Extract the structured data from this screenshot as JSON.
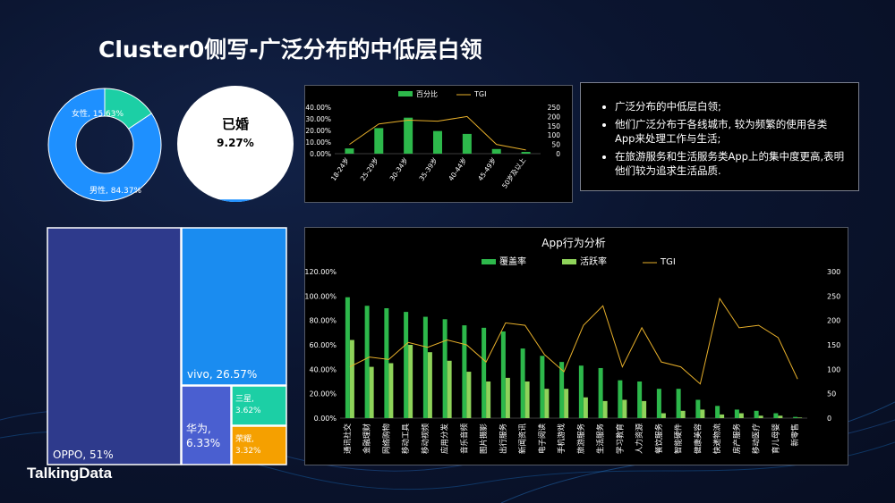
{
  "title": "Cluster0侧写-广泛分布的中低层白领",
  "brand": "TalkingData",
  "notes": [
    "广泛分布的中低层白领;",
    "他们广泛分布于各线城市, 较为频繁的使用各类App来处理工作与生活;",
    "在旅游服务和生活服务类App上的集中度更高,表明他们较为追求生活品质."
  ],
  "colors": {
    "green": "#2db84b",
    "light_green": "#8fd35a",
    "tgi": "#e8b02a",
    "blue": "#1e90ff",
    "teal": "#1ccfa5",
    "navy": "#2e3a8c"
  },
  "chart_data": [
    {
      "type": "pie",
      "chart": "gender-donut",
      "labels": [
        "女性, 15.63%",
        "男性, 84.37%"
      ],
      "values": [
        15.63,
        84.37
      ]
    },
    {
      "type": "pie",
      "chart": "marital-pie",
      "label": "已婚",
      "value_label": "9.27%",
      "values": [
        9.27,
        90.73
      ]
    },
    {
      "type": "bar",
      "chart": "age-chart",
      "legend": [
        "百分比",
        "TGI"
      ],
      "categories": [
        "18-24岁",
        "25-29岁",
        "30-34岁",
        "35-39岁",
        "40-44岁",
        "45-49岁",
        "50岁及以上"
      ],
      "series": [
        {
          "name": "百分比",
          "values": [
            4.5,
            22,
            31,
            19.5,
            17,
            4,
            1.5
          ]
        },
        {
          "name": "TGI",
          "values": [
            50,
            160,
            180,
            175,
            200,
            50,
            20
          ]
        }
      ],
      "yticks_left": [
        "0.00%",
        "10.00%",
        "20.00%",
        "30.00%",
        "40.00%"
      ],
      "yticks_right": [
        "0",
        "50",
        "100",
        "150",
        "200",
        "250"
      ],
      "ylim": [
        0,
        40
      ],
      "ylim_right": [
        0,
        250
      ]
    },
    {
      "type": "table",
      "chart": "brand-treemap",
      "labels": [
        "OPPO, 51%",
        "vivo, 26.57%",
        "华为, 6.33%",
        "三星, 3.62%",
        "荣耀, 3.32%"
      ],
      "values": [
        51,
        26.57,
        6.33,
        3.62,
        3.32
      ]
    },
    {
      "type": "bar",
      "chart": "app-chart",
      "title": "App行为分析",
      "legend": [
        "覆盖率",
        "活跃率",
        "TGI"
      ],
      "categories": [
        "通讯社交",
        "金融理财",
        "网络购物",
        "移动工具",
        "移动视频",
        "应用分发",
        "音乐音频",
        "图片摄影",
        "出行服务",
        "新闻资讯",
        "电子阅读",
        "手机游戏",
        "旅游服务",
        "生活服务",
        "学习教育",
        "人力资源",
        "餐饮服务",
        "智能硬件",
        "健康美容",
        "快递物流",
        "房产服务",
        "移动医疗",
        "育儿母婴",
        "新零售"
      ],
      "series": [
        {
          "name": "覆盖率",
          "values": [
            99,
            92,
            90,
            87,
            83,
            81,
            76,
            74,
            71,
            57,
            51,
            46,
            43,
            41,
            31,
            30,
            24,
            24,
            15,
            10,
            7,
            6,
            4,
            1
          ]
        },
        {
          "name": "活跃率",
          "values": [
            64,
            42,
            45,
            60,
            54,
            47,
            38,
            30,
            33,
            30,
            24,
            24,
            17,
            14,
            15,
            14,
            4,
            6,
            7,
            3,
            4,
            2,
            2,
            0.5
          ]
        },
        {
          "name": "TGI",
          "values": [
            105,
            125,
            120,
            155,
            145,
            160,
            150,
            115,
            195,
            190,
            130,
            95,
            190,
            230,
            105,
            185,
            115,
            105,
            70,
            245,
            185,
            190,
            165,
            80
          ]
        }
      ],
      "yticks_left": [
        "0.00%",
        "20.00%",
        "40.00%",
        "60.00%",
        "80.00%",
        "100.00%",
        "120.00%"
      ],
      "yticks_right": [
        "0",
        "50",
        "100",
        "150",
        "200",
        "250",
        "300"
      ],
      "ylim": [
        0,
        120
      ],
      "ylim_right": [
        0,
        300
      ]
    }
  ]
}
